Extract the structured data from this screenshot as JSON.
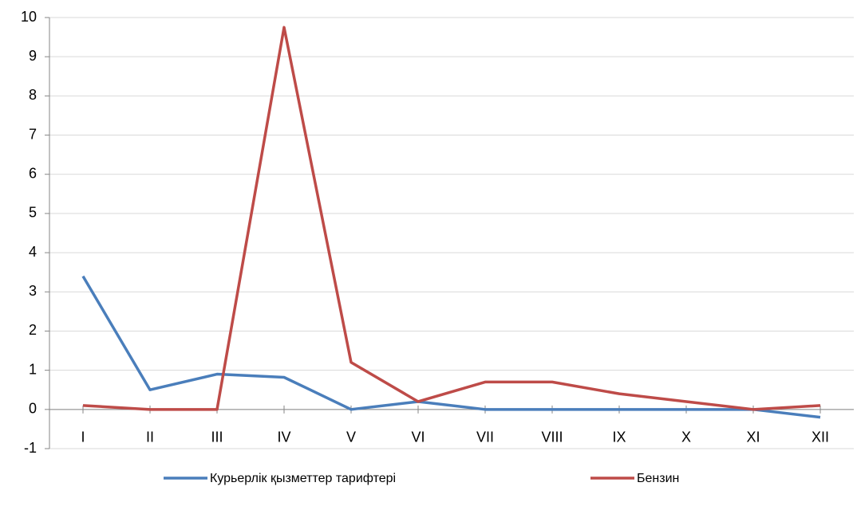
{
  "chart_data": {
    "type": "line",
    "categories": [
      "I",
      "II",
      "III",
      "IV",
      "V",
      "VI",
      "VII",
      "VIII",
      "IX",
      "X",
      "XI",
      "XII"
    ],
    "series": [
      {
        "name": "Курьерлік қызметтер тарифтері",
        "color": "#4a7ebb",
        "values": [
          3.4,
          0.5,
          0.9,
          0.82,
          0,
          0.2,
          0,
          0,
          0,
          0,
          0,
          -0.2
        ]
      },
      {
        "name": "Бензин",
        "color": "#be4b48",
        "values": [
          0.1,
          0,
          0,
          9.75,
          1.2,
          0.2,
          0.7,
          0.7,
          0.4,
          0.2,
          0,
          0.1
        ]
      }
    ],
    "ylim": [
      -1,
      10
    ],
    "yticks": [
      -1,
      0,
      1,
      2,
      3,
      4,
      5,
      6,
      7,
      8,
      9,
      10
    ],
    "grid": true,
    "legend": "bottom"
  }
}
